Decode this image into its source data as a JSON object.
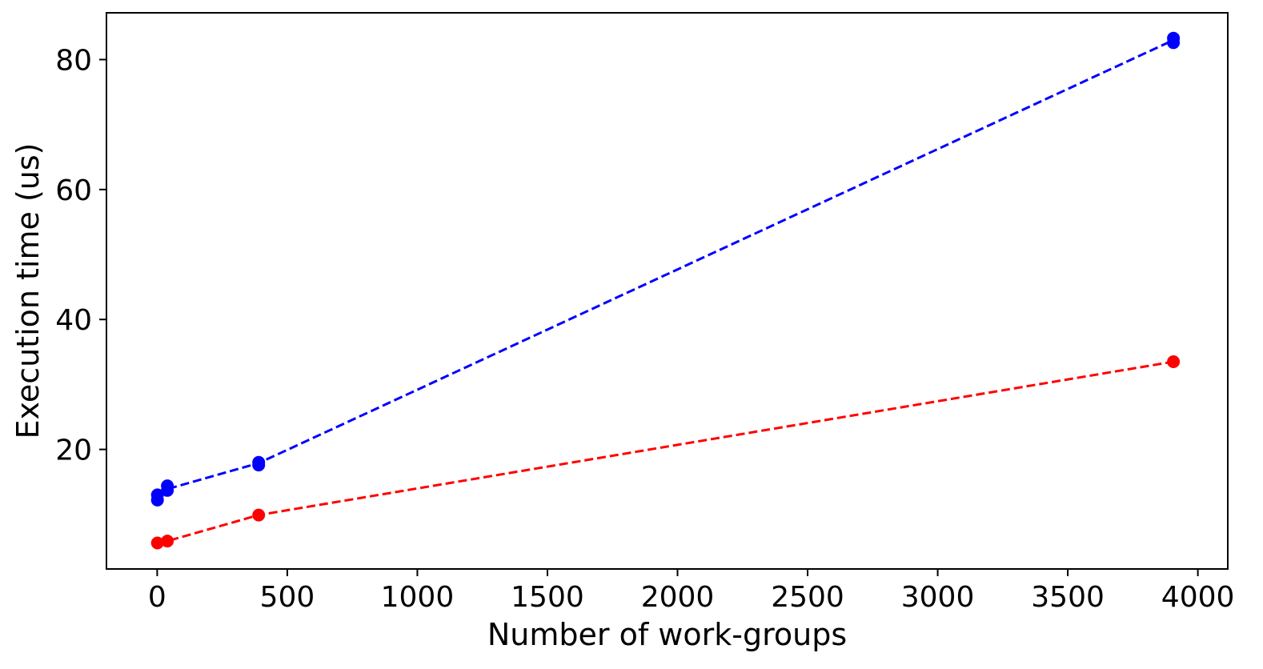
{
  "chart_data": {
    "type": "line",
    "title": "",
    "xlabel": "Number of work-groups",
    "ylabel": "Execution time (us)",
    "xlim": [
      -195,
      4115
    ],
    "ylim": [
      1.6,
      87.2
    ],
    "xticks": [
      0,
      500,
      1000,
      1500,
      2000,
      2500,
      3000,
      3500,
      4000
    ],
    "yticks": [
      20,
      40,
      60,
      80
    ],
    "grid": false,
    "legend": "none",
    "line_style": "dashed",
    "series": [
      {
        "color": "#0000ff",
        "line": [
          [
            1,
            12.9
          ],
          [
            39,
            13.9
          ],
          [
            390,
            17.9
          ],
          [
            3906,
            83.0
          ]
        ],
        "points": [
          [
            1,
            12.2
          ],
          [
            1,
            13.0
          ],
          [
            39,
            13.7
          ],
          [
            39,
            14.4
          ],
          [
            390,
            17.6
          ],
          [
            390,
            18.0
          ],
          [
            3906,
            82.6
          ],
          [
            3906,
            83.3
          ]
        ]
      },
      {
        "color": "#ff0000",
        "line": [
          [
            1,
            5.6
          ],
          [
            39,
            5.9
          ],
          [
            390,
            9.9
          ],
          [
            3906,
            33.5
          ]
        ],
        "points": [
          [
            1,
            5.6
          ],
          [
            39,
            5.9
          ],
          [
            390,
            9.9
          ],
          [
            3906,
            33.5
          ]
        ]
      }
    ]
  }
}
